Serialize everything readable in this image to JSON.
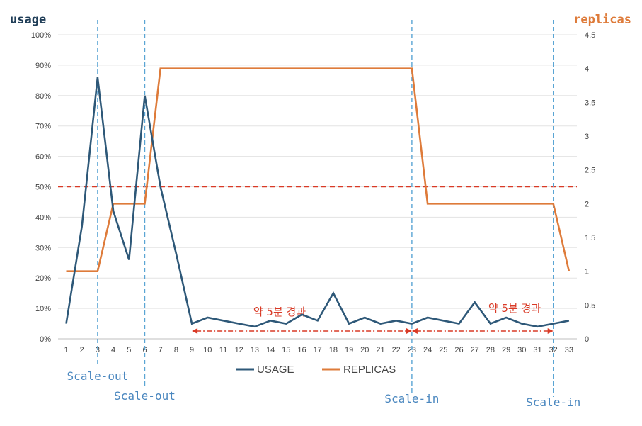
{
  "chart_data": {
    "type": "line",
    "y_left_label": "usage",
    "y_right_label": "replicas",
    "categories": [
      "1",
      "2",
      "3",
      "4",
      "5",
      "6",
      "7",
      "8",
      "9",
      "10",
      "11",
      "12",
      "13",
      "14",
      "15",
      "16",
      "17",
      "18",
      "19",
      "20",
      "21",
      "22",
      "23",
      "24",
      "25",
      "26",
      "27",
      "28",
      "29",
      "30",
      "31",
      "32",
      "33"
    ],
    "y_left_ticks": [
      "0%",
      "10%",
      "20%",
      "30%",
      "40%",
      "50%",
      "60%",
      "70%",
      "80%",
      "90%",
      "100%"
    ],
    "y_left_range": [
      0,
      100
    ],
    "y_right_ticks": [
      "0",
      "0.5",
      "1",
      "1.5",
      "2",
      "2.5",
      "3",
      "3.5",
      "4",
      "4.5"
    ],
    "y_right_range": [
      0,
      4.5
    ],
    "series": [
      {
        "name": "USAGE",
        "axis": "left",
        "color": "#2e5878",
        "values": [
          5,
          37,
          86,
          42,
          26,
          80,
          50,
          28,
          5,
          7,
          6,
          5,
          4,
          6,
          5,
          8,
          6,
          15,
          5,
          7,
          5,
          6,
          5,
          7,
          6,
          5,
          12,
          5,
          7,
          5,
          4,
          5,
          6
        ]
      },
      {
        "name": "REPLICAS",
        "axis": "right",
        "color": "#de7b3a",
        "values": [
          1,
          1,
          1,
          2,
          2,
          2,
          4,
          4,
          4,
          4,
          4,
          4,
          4,
          4,
          4,
          4,
          4,
          4,
          4,
          4,
          4,
          4,
          4,
          2,
          2,
          2,
          2,
          2,
          2,
          2,
          2,
          2,
          1
        ]
      }
    ],
    "threshold": {
      "value": 50,
      "axis": "left",
      "color": "#d93a26"
    },
    "event_lines": [
      {
        "x": 3,
        "label": "Scale-out"
      },
      {
        "x": 6,
        "label": "Scale-out"
      },
      {
        "x": 23,
        "label": "Scale-in"
      },
      {
        "x": 32,
        "label": "Scale-in"
      }
    ],
    "event_color": "#5aa5d4",
    "event_label_color": "#4a87bf",
    "annotations": [
      {
        "from": 9,
        "to": 23,
        "text": "약 5분 경과"
      },
      {
        "from": 23,
        "to": 32,
        "text": "약 5분 경과"
      }
    ],
    "annotation_color": "#d93a26",
    "left_label_color": "#1f3d57",
    "right_label_color": "#de7b3a",
    "legend": "bottom-center",
    "grid": true
  }
}
